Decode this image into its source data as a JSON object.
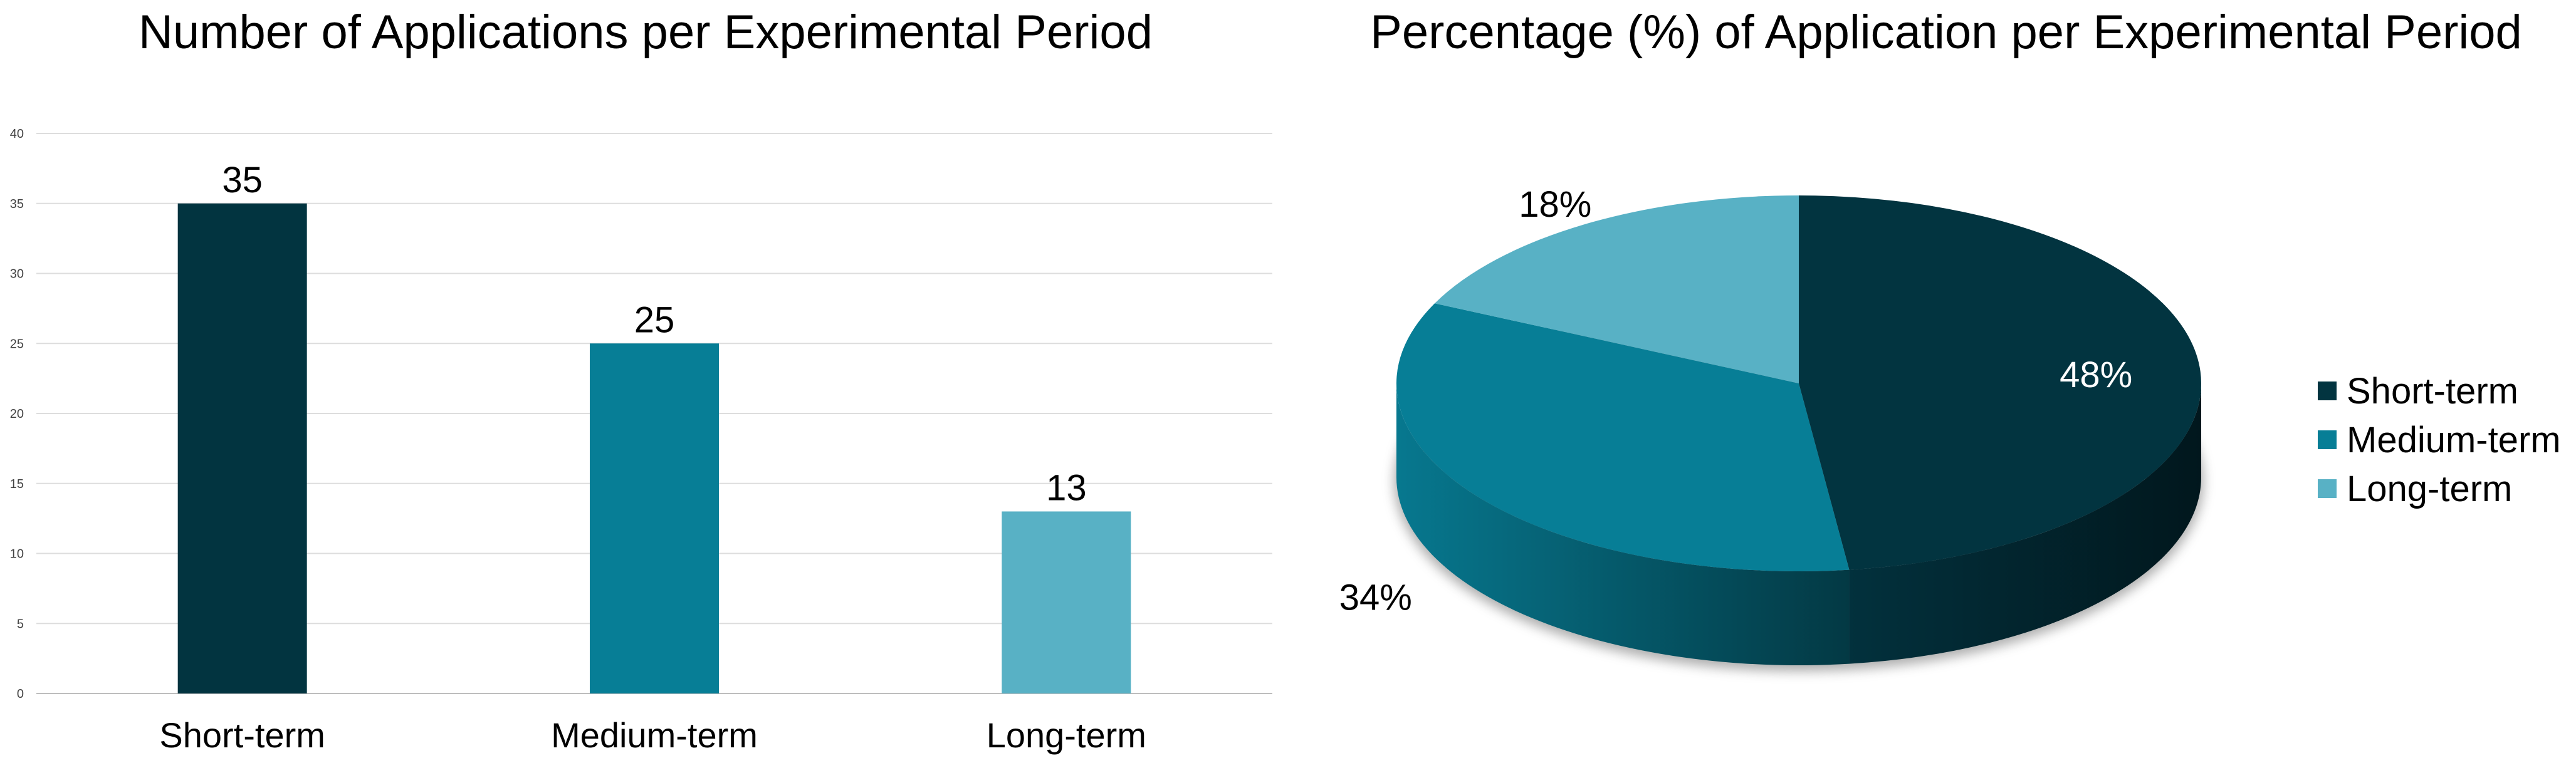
{
  "chart_data": [
    {
      "type": "bar",
      "title": "Number of Applications per Experimental Period",
      "categories": [
        "Short-term",
        "Medium-term",
        "Long-term"
      ],
      "values": [
        35,
        25,
        13
      ],
      "colors": [
        "#023440",
        "#077E96",
        "#58B1C5"
      ],
      "ylim": [
        0,
        40
      ],
      "yticks": [
        0,
        5,
        10,
        15,
        20,
        25,
        30,
        35,
        40
      ],
      "grid": true,
      "xlabel": "",
      "ylabel": "",
      "data_labels": true
    },
    {
      "type": "pie",
      "title": "Percentage (%) of Application per Experimental Period",
      "categories": [
        "Short-term",
        "Medium-term",
        "Long-term"
      ],
      "values": [
        48,
        34,
        18
      ],
      "value_labels": [
        "48%",
        "34%",
        "18%"
      ],
      "colors": [
        "#023440",
        "#077E96",
        "#58B1C5"
      ],
      "label_colors": [
        "#ffffff",
        "#000000",
        "#000000"
      ],
      "style": "3d",
      "legend": "right"
    }
  ]
}
